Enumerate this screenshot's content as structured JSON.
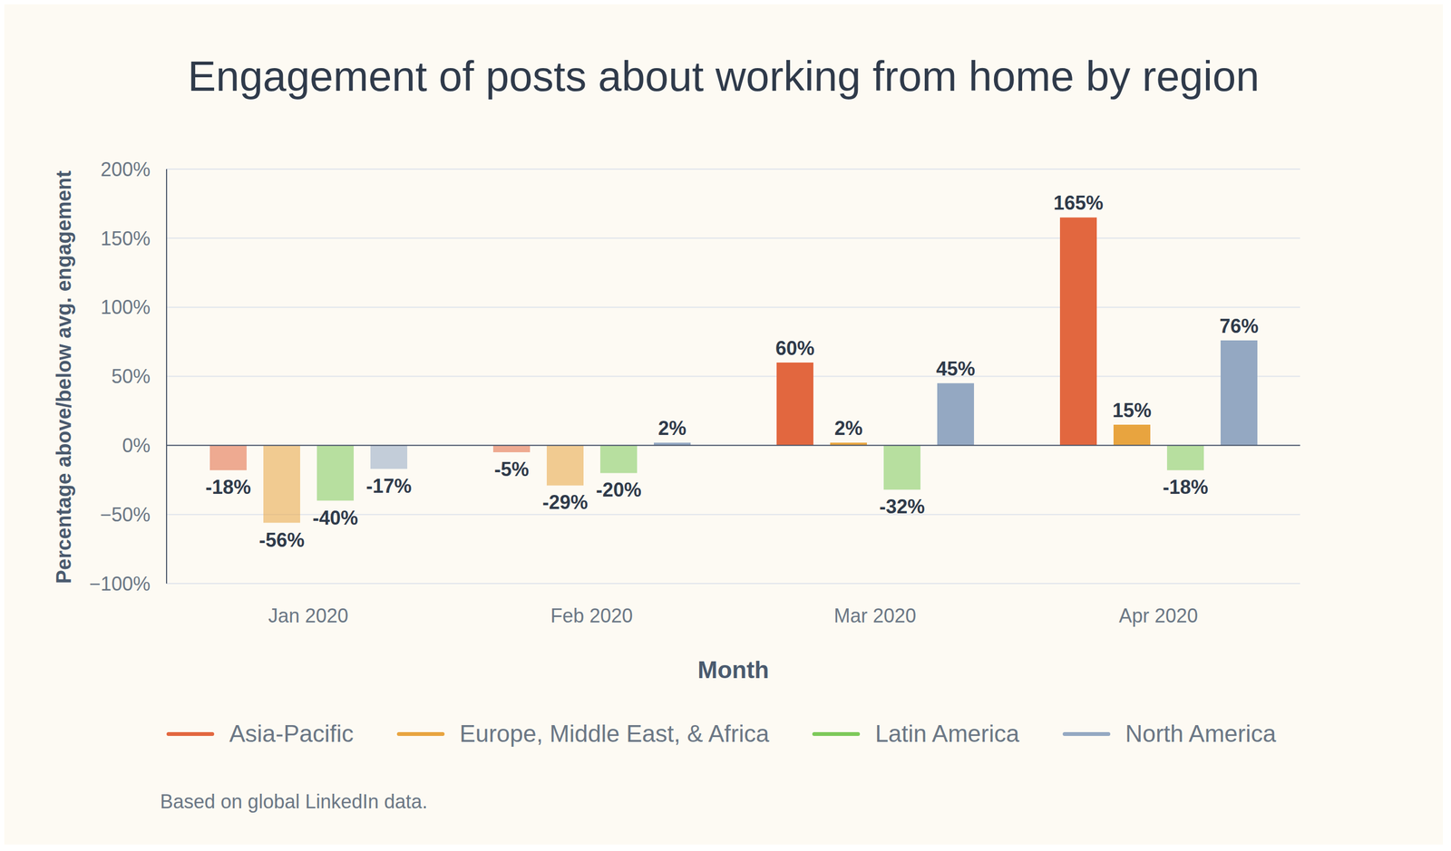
{
  "chart_data": {
    "type": "bar",
    "title": "Engagement of posts about working from home by region",
    "x_label": "Month",
    "y_label": "Percentage above/below avg. engagement",
    "note": "Based on global LinkedIn data.",
    "categories": [
      "Jan 2020",
      "Feb 2020",
      "Mar 2020",
      "Apr 2020"
    ],
    "series": [
      {
        "name": "Asia-Pacific",
        "color": "#e2673f",
        "values": [
          -18,
          -5,
          60,
          165
        ],
        "value_labels": [
          "-18%",
          "-5%",
          "60%",
          "165%"
        ]
      },
      {
        "name": "Europe, Middle East, & Africa",
        "color": "#e8a43f",
        "values": [
          -56,
          -29,
          2,
          15
        ],
        "value_labels": [
          "-56%",
          "-29%",
          "2%",
          "15%"
        ]
      },
      {
        "name": "Latin America",
        "color": "#7dc95a",
        "values": [
          -40,
          -20,
          -32,
          -18
        ],
        "value_labels": [
          "-40%",
          "-20%",
          "-32%",
          "-18%"
        ]
      },
      {
        "name": "North America",
        "color": "#94a8c2",
        "values": [
          -17,
          2,
          45,
          76
        ],
        "value_labels": [
          "-17%",
          "2%",
          "45%",
          "76%"
        ]
      }
    ],
    "ylim": [
      -100,
      200
    ],
    "yticks": [
      {
        "value": -100,
        "label": "−100%"
      },
      {
        "value": -50,
        "label": "−50%"
      },
      {
        "value": 0,
        "label": "0%"
      },
      {
        "value": 50,
        "label": "50%"
      },
      {
        "value": 100,
        "label": "100%"
      },
      {
        "value": 150,
        "label": "150%"
      },
      {
        "value": 200,
        "label": "200%"
      }
    ],
    "grid": true,
    "legend": "bottom",
    "data_labels": true
  }
}
